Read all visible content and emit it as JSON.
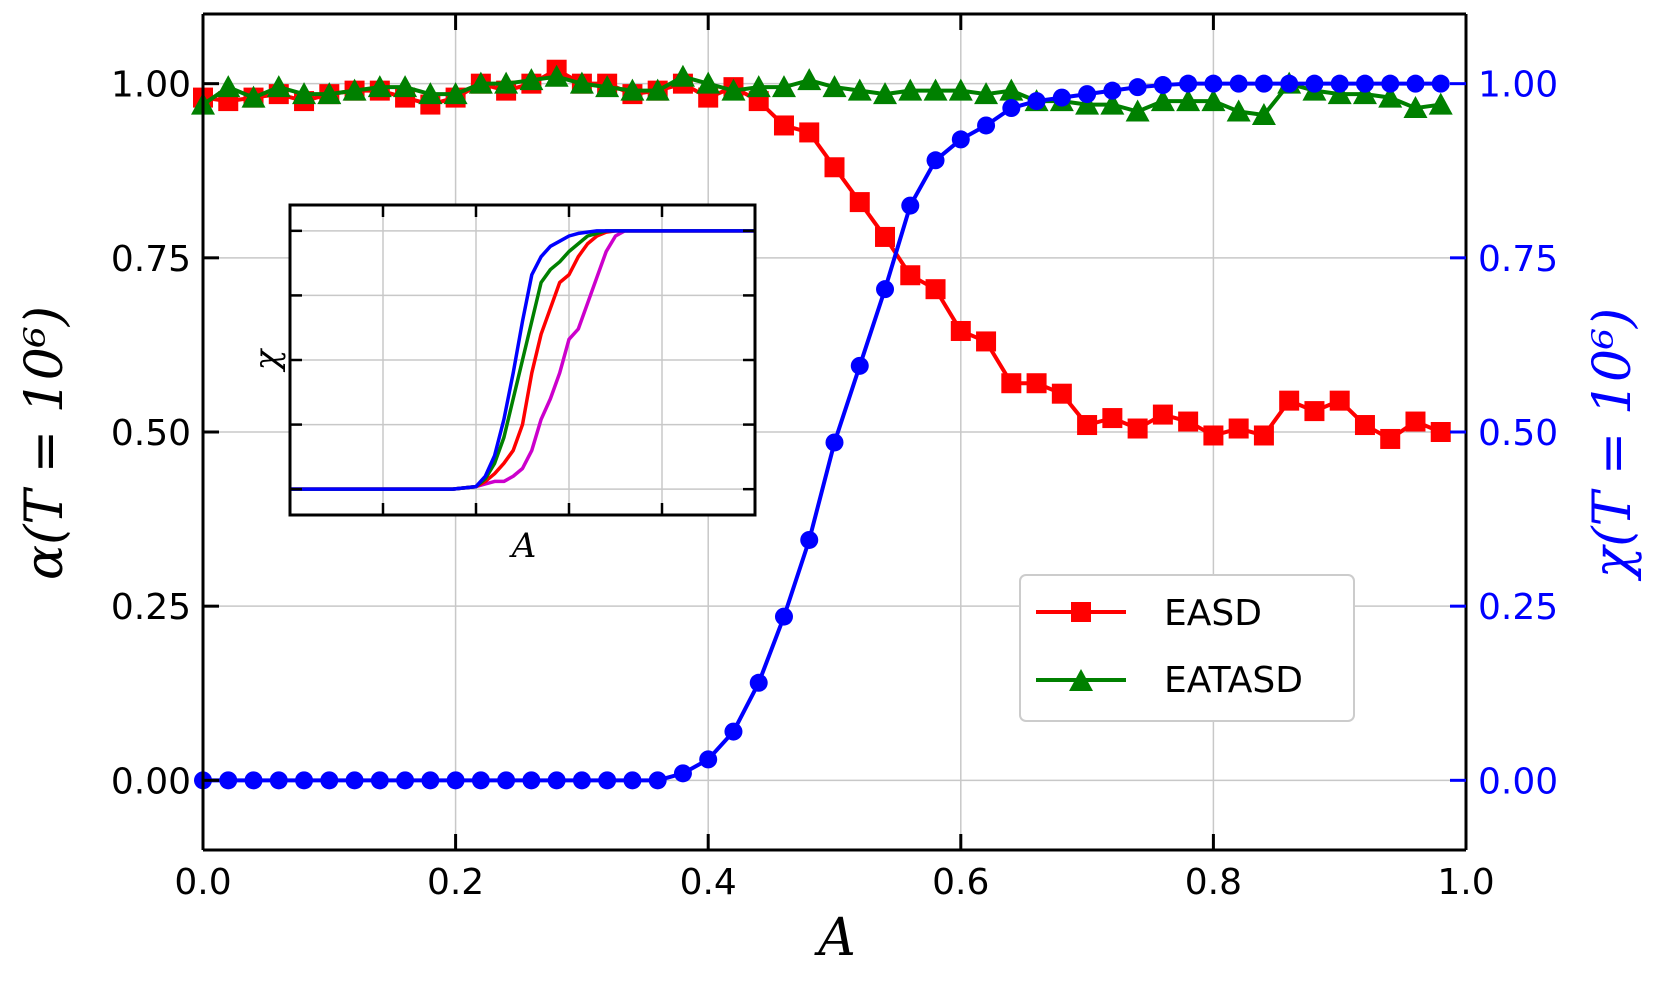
{
  "chart_data": {
    "type": "line",
    "main": {
      "x": [
        0.0,
        0.02,
        0.04,
        0.06,
        0.08,
        0.1,
        0.12,
        0.14,
        0.16,
        0.18,
        0.2,
        0.22,
        0.24,
        0.26,
        0.28,
        0.3,
        0.32,
        0.34,
        0.36,
        0.38,
        0.4,
        0.42,
        0.44,
        0.46,
        0.48,
        0.5,
        0.52,
        0.54,
        0.56,
        0.58,
        0.6,
        0.62,
        0.64,
        0.66,
        0.68,
        0.7,
        0.72,
        0.74,
        0.76,
        0.78,
        0.8,
        0.82,
        0.84,
        0.86,
        0.88,
        0.9,
        0.92,
        0.94,
        0.96,
        0.98
      ],
      "xlabel": "A",
      "xlim": [
        0.0,
        1.0
      ],
      "xticks": [
        "0.0",
        "0.2",
        "0.4",
        "0.6",
        "0.8",
        "1.0"
      ],
      "xtick_values": [
        0.0,
        0.2,
        0.4,
        0.6,
        0.8,
        1.0
      ],
      "ylabel_left": "α(T = 10⁶)",
      "ylabel_right": "χ(T = 10⁶)",
      "ylim": [
        -0.1,
        1.1
      ],
      "yticks": [
        "0.00",
        "0.25",
        "0.50",
        "0.75",
        "1.00"
      ],
      "ytick_values": [
        0.0,
        0.25,
        0.5,
        0.75,
        1.0
      ],
      "grid": true,
      "series": [
        {
          "name": "EASD",
          "axis": "left",
          "color": "#ff0000",
          "marker": "square",
          "values": [
            0.98,
            0.975,
            0.98,
            0.985,
            0.975,
            0.985,
            0.99,
            0.99,
            0.98,
            0.97,
            0.98,
            1.0,
            0.99,
            1.0,
            1.02,
            1.0,
            1.0,
            0.985,
            0.99,
            1.0,
            0.98,
            0.995,
            0.975,
            0.94,
            0.93,
            0.88,
            0.83,
            0.78,
            0.725,
            0.705,
            0.645,
            0.63,
            0.57,
            0.57,
            0.555,
            0.51,
            0.52,
            0.505,
            0.525,
            0.515,
            0.495,
            0.505,
            0.495,
            0.545,
            0.53,
            0.545,
            0.51,
            0.49,
            0.515,
            0.5
          ]
        },
        {
          "name": "EATASD",
          "axis": "left",
          "color": "#008000",
          "marker": "triangle",
          "values": [
            0.97,
            0.995,
            0.98,
            0.995,
            0.985,
            0.985,
            0.99,
            0.995,
            0.995,
            0.985,
            0.985,
            1.0,
            1.0,
            1.005,
            1.01,
            1.0,
            0.995,
            0.99,
            0.99,
            1.01,
            1.0,
            0.99,
            0.995,
            0.995,
            1.005,
            0.995,
            0.99,
            0.985,
            0.99,
            0.99,
            0.99,
            0.985,
            0.99,
            0.975,
            0.975,
            0.97,
            0.97,
            0.96,
            0.975,
            0.975,
            0.975,
            0.96,
            0.955,
            1.0,
            0.99,
            0.985,
            0.985,
            0.98,
            0.965,
            0.97
          ]
        },
        {
          "name": "chi",
          "axis": "right",
          "color": "#0000ff",
          "marker": "circle",
          "values": [
            0.0,
            0.0,
            0.0,
            0.0,
            0.0,
            0.0,
            0.0,
            0.0,
            0.0,
            0.0,
            0.0,
            0.0,
            0.0,
            0.0,
            0.0,
            0.0,
            0.0,
            0.0,
            0.0,
            0.01,
            0.03,
            0.07,
            0.14,
            0.235,
            0.345,
            0.485,
            0.595,
            0.705,
            0.825,
            0.89,
            0.92,
            0.94,
            0.965,
            0.975,
            0.98,
            0.985,
            0.99,
            0.995,
            0.998,
            1.0,
            1.0,
            1.0,
            1.0,
            1.0,
            1.0,
            1.0,
            1.0,
            1.0,
            1.0,
            1.0
          ]
        }
      ],
      "legend": {
        "position": "lower-right",
        "entries": [
          "EASD",
          "EATASD"
        ]
      }
    },
    "inset": {
      "type": "line",
      "xlabel": "A",
      "ylabel": "χ",
      "xlim": [
        0.0,
        1.0
      ],
      "ylim": [
        -0.1,
        1.1
      ],
      "x": [
        0.0,
        0.05,
        0.1,
        0.15,
        0.2,
        0.25,
        0.3,
        0.35,
        0.4,
        0.42,
        0.44,
        0.46,
        0.48,
        0.5,
        0.52,
        0.54,
        0.56,
        0.58,
        0.6,
        0.62,
        0.64,
        0.66,
        0.68,
        0.7,
        0.72,
        0.74,
        0.76,
        0.78,
        0.8,
        0.85,
        0.9,
        0.95,
        1.0
      ],
      "series": [
        {
          "color": "#cc00cc",
          "values": [
            0,
            0,
            0,
            0,
            0,
            0,
            0,
            0,
            0.01,
            0.02,
            0.03,
            0.03,
            0.05,
            0.08,
            0.15,
            0.27,
            0.35,
            0.45,
            0.58,
            0.62,
            0.72,
            0.82,
            0.92,
            0.98,
            1.0,
            1.0,
            1.0,
            1.0,
            1.0,
            1.0,
            1.0,
            1.0,
            1.0
          ]
        },
        {
          "color": "#ff0000",
          "values": [
            0,
            0,
            0,
            0,
            0,
            0,
            0,
            0,
            0.01,
            0.03,
            0.06,
            0.1,
            0.15,
            0.25,
            0.45,
            0.6,
            0.7,
            0.8,
            0.83,
            0.9,
            0.95,
            0.98,
            0.995,
            1.0,
            1.0,
            1.0,
            1.0,
            1.0,
            1.0,
            1.0,
            1.0,
            1.0,
            1.0
          ]
        },
        {
          "color": "#008000",
          "values": [
            0,
            0,
            0,
            0,
            0,
            0,
            0,
            0,
            0.01,
            0.04,
            0.1,
            0.2,
            0.35,
            0.5,
            0.65,
            0.8,
            0.85,
            0.88,
            0.92,
            0.95,
            0.98,
            0.99,
            1.0,
            1.0,
            1.0,
            1.0,
            1.0,
            1.0,
            1.0,
            1.0,
            1.0,
            1.0,
            1.0
          ]
        },
        {
          "color": "#0000ff",
          "values": [
            0,
            0,
            0,
            0,
            0,
            0,
            0,
            0,
            0.01,
            0.05,
            0.13,
            0.27,
            0.45,
            0.65,
            0.83,
            0.9,
            0.94,
            0.96,
            0.98,
            0.99,
            0.995,
            1.0,
            1.0,
            1.0,
            1.0,
            1.0,
            1.0,
            1.0,
            1.0,
            1.0,
            1.0,
            1.0,
            1.0
          ]
        }
      ]
    }
  }
}
